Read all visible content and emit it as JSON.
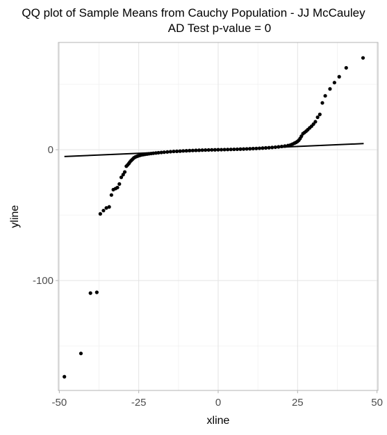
{
  "chart_data": {
    "type": "scatter",
    "title": "QQ plot of Sample Means from Cauchy Population -  JJ McCauley",
    "subtitle": "AD Test p-value = 0",
    "xlabel": "xline",
    "ylabel": "yline",
    "xlim": [
      -50.3,
      50.3
    ],
    "ylim": [
      -184,
      82
    ],
    "x_ticks": [
      {
        "value": -50,
        "label": "-50"
      },
      {
        "value": -25,
        "label": "-25"
      },
      {
        "value": 0,
        "label": "0"
      },
      {
        "value": 25,
        "label": "25"
      },
      {
        "value": 50,
        "label": "50"
      }
    ],
    "y_ticks": [
      {
        "value": 0,
        "label": "0"
      },
      {
        "value": -100,
        "label": "-100"
      }
    ],
    "grid": true,
    "reference_line": {
      "x": [
        -48.4,
        45.8
      ],
      "y": [
        -5.2,
        4.7
      ]
    },
    "series": [
      {
        "points": [
          [
            -48.4,
            -173.5
          ],
          [
            -43.2,
            -155.7
          ],
          [
            -40.2,
            -109.6
          ],
          [
            -38.2,
            -109.0
          ],
          [
            -37.1,
            -49.0
          ],
          [
            -36.1,
            -46.5
          ],
          [
            -35.2,
            -44.5
          ],
          [
            -34.3,
            -43.7
          ],
          [
            -33.6,
            -34.6
          ],
          [
            -33.0,
            -30.5
          ],
          [
            -32.3,
            -29.7
          ],
          [
            -31.7,
            -28.9
          ],
          [
            -31.1,
            -26.2
          ],
          [
            -30.5,
            -21.1
          ],
          [
            -29.9,
            -19.0
          ],
          [
            -29.4,
            -17.0
          ],
          [
            -28.9,
            -12.6
          ],
          [
            -28.5,
            -11.6
          ],
          [
            -28.1,
            -10.5
          ],
          [
            -27.8,
            -9.4
          ],
          [
            -27.4,
            -8.3
          ],
          [
            -27.0,
            -7.4
          ],
          [
            -26.7,
            -6.6
          ],
          [
            -26.4,
            -6.0
          ],
          [
            -26.1,
            -5.6
          ],
          [
            -25.7,
            -5.2
          ],
          [
            -25.3,
            -4.8
          ],
          [
            -24.9,
            -4.5
          ],
          [
            -24.5,
            -4.2
          ],
          [
            -24.0,
            -3.9
          ],
          [
            -23.5,
            -3.7
          ],
          [
            -23.0,
            -3.5
          ],
          [
            -22.4,
            -3.3
          ],
          [
            -21.8,
            -3.1
          ],
          [
            -21.1,
            -2.9
          ],
          [
            -20.4,
            -2.7
          ],
          [
            -19.6,
            -2.5
          ],
          [
            -18.8,
            -2.3
          ],
          [
            -17.9,
            -2.1
          ],
          [
            -17.0,
            -1.9
          ],
          [
            -16.0,
            -1.7
          ],
          [
            -15.0,
            -1.5
          ],
          [
            -14.0,
            -1.3
          ],
          [
            -13.0,
            -1.2
          ],
          [
            -12.0,
            -1.05
          ],
          [
            -11.0,
            -0.9
          ],
          [
            -10.0,
            -0.78
          ],
          [
            -9.0,
            -0.66
          ],
          [
            -8.0,
            -0.55
          ],
          [
            -7.0,
            -0.46
          ],
          [
            -6.0,
            -0.38
          ],
          [
            -5.0,
            -0.3
          ],
          [
            -4.0,
            -0.23
          ],
          [
            -3.0,
            -0.16
          ],
          [
            -2.0,
            -0.1
          ],
          [
            -1.0,
            -0.05
          ],
          [
            0.0,
            0.0
          ],
          [
            1.0,
            0.05
          ],
          [
            2.0,
            0.1
          ],
          [
            3.0,
            0.16
          ],
          [
            4.0,
            0.23
          ],
          [
            5.0,
            0.3
          ],
          [
            6.0,
            0.38
          ],
          [
            7.0,
            0.46
          ],
          [
            8.0,
            0.55
          ],
          [
            9.0,
            0.65
          ],
          [
            10.0,
            0.75
          ],
          [
            11.0,
            0.86
          ],
          [
            12.0,
            0.98
          ],
          [
            13.0,
            1.1
          ],
          [
            14.0,
            1.25
          ],
          [
            15.0,
            1.4
          ],
          [
            16.0,
            1.55
          ],
          [
            17.0,
            1.75
          ],
          [
            18.0,
            1.95
          ],
          [
            19.0,
            2.2
          ],
          [
            20.0,
            2.5
          ],
          [
            21.0,
            2.8
          ],
          [
            22.0,
            3.2
          ],
          [
            22.8,
            3.7
          ],
          [
            23.4,
            4.3
          ],
          [
            24.0,
            5.0
          ],
          [
            24.5,
            5.6
          ],
          [
            25.0,
            6.4
          ],
          [
            25.4,
            7.3
          ],
          [
            25.8,
            8.6
          ],
          [
            26.2,
            10.3
          ],
          [
            26.7,
            12.3
          ],
          [
            27.2,
            13.2
          ],
          [
            27.7,
            14.2
          ],
          [
            28.2,
            15.3
          ],
          [
            28.8,
            16.7
          ],
          [
            29.4,
            18.0
          ],
          [
            30.0,
            19.6
          ],
          [
            30.6,
            21.4
          ],
          [
            31.3,
            24.8
          ],
          [
            32.0,
            27.0
          ],
          [
            32.8,
            35.8
          ],
          [
            33.7,
            41.2
          ],
          [
            35.2,
            46.5
          ],
          [
            36.6,
            51.3
          ],
          [
            38.1,
            55.8
          ],
          [
            40.3,
            62.6
          ],
          [
            45.6,
            70.2
          ]
        ]
      }
    ]
  }
}
